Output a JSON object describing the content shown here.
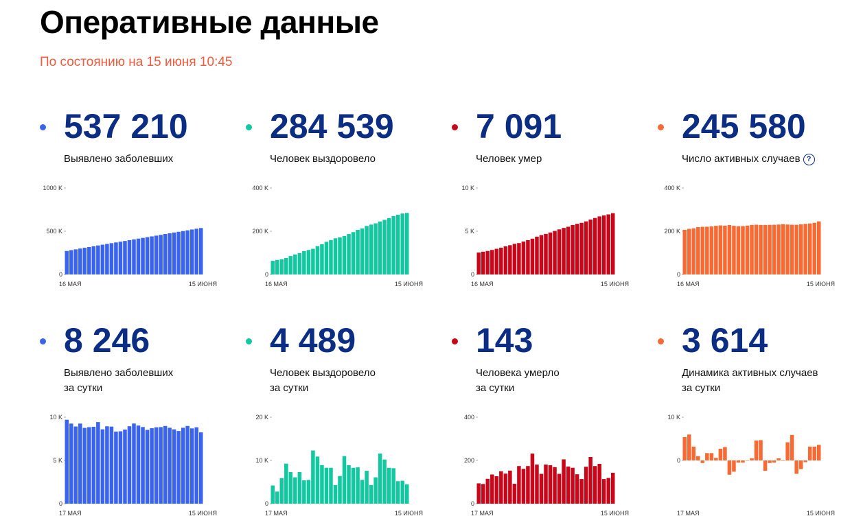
{
  "page": {
    "title": "Оперативные данные",
    "subtitle": "По состоянию на 15 июня 10:45"
  },
  "help_icon": "question-circle-icon",
  "panels": [
    {
      "id": "cases-total",
      "color": "#3a63ee",
      "value": "537 210",
      "label_line1": "Выявлено заболевших",
      "label_line2": "",
      "has_help": false,
      "chart_data": {
        "type": "bar",
        "ylim": [
          0,
          1000000
        ],
        "baseline": 0,
        "y_ticks": [
          {
            "v": 1000000,
            "label": "1000 K"
          },
          {
            "v": 500000,
            "label": "500 K"
          },
          {
            "v": 0,
            "label": "0"
          }
        ],
        "x_start_label": "16 МАЯ",
        "x_end_label": "15 ИЮНЯ",
        "values": [
          272043,
          281752,
          290678,
          299941,
          308705,
          317554,
          326448,
          335882,
          344481,
          353427,
          362342,
          370680,
          379051,
          387623,
          396575,
          405843,
          414878,
          423186,
          431715,
          440538,
          449256,
          458102,
          467673,
          476658,
          485253,
          493657,
          502436,
          510761,
          520129,
          528964,
          537210
        ]
      }
    },
    {
      "id": "recovered-total",
      "color": "#12c8a0",
      "value": "284 539",
      "label_line1": "Человек выздоровело",
      "label_line2": "",
      "has_help": false,
      "chart_data": {
        "type": "bar",
        "ylim": [
          0,
          400000
        ],
        "baseline": 0,
        "y_ticks": [
          {
            "v": 400000,
            "label": "400 K"
          },
          {
            "v": 200000,
            "label": "200 K"
          },
          {
            "v": 0,
            "label": "0"
          }
        ],
        "x_start_label": "16 МАЯ",
        "x_end_label": "15 ИЮНЯ",
        "values": [
          63166,
          67373,
          70209,
          76130,
          85392,
          92681,
          98825,
          107936,
          113299,
          118798,
          131129,
          139979,
          150993,
          159257,
          167469,
          171883,
          178073,
          186985,
          195957,
          206340,
          213154,
          224551,
          230688,
          236470,
          245217,
          252784,
          260518,
          270165,
          276349,
          282000,
          284539
        ]
      }
    },
    {
      "id": "deaths-total",
      "color": "#c8081a",
      "value": "7 091",
      "label_line1": "Человек умер",
      "label_line2": "",
      "has_help": false,
      "chart_data": {
        "type": "bar",
        "ylim": [
          0,
          10000
        ],
        "baseline": 0,
        "y_ticks": [
          {
            "v": 10000,
            "label": "10 K"
          },
          {
            "v": 5000,
            "label": "5 K"
          },
          {
            "v": 0,
            "label": "0"
          }
        ],
        "x_start_label": "16 МАЯ",
        "x_end_label": "15 ИЮНЯ",
        "values": [
          2537,
          2631,
          2722,
          2837,
          2972,
          3099,
          3249,
          3388,
          3541,
          3633,
          3807,
          3968,
          4142,
          4374,
          4555,
          4693,
          4855,
          5037,
          5215,
          5384,
          5520,
          5725,
          5859,
          5971,
          6142,
          6358,
          6532,
          6715,
          6829,
          6948,
          7091
        ]
      }
    },
    {
      "id": "active-total",
      "color": "#f86a34",
      "value": "245 580",
      "label_line1": "Число активных случаев",
      "label_line2": "",
      "has_help": true,
      "chart_data": {
        "type": "bar",
        "ylim": [
          0,
          400000
        ],
        "baseline": 0,
        "y_ticks": [
          {
            "v": 400000,
            "label": "400 K"
          },
          {
            "v": 200000,
            "label": "200 K"
          },
          {
            "v": 0,
            "label": "0"
          }
        ],
        "x_start_label": "16 МАЯ",
        "x_end_label": "15 ИЮНЯ",
        "values": [
          206340,
          211130,
          213400,
          219000,
          220500,
          221000,
          222500,
          225000,
          227000,
          226000,
          228800,
          225000,
          223500,
          224000,
          226000,
          229300,
          230200,
          229000,
          229000,
          229500,
          230100,
          231000,
          233000,
          231000,
          230200,
          230000,
          232000,
          234200,
          236000,
          239000,
          245580
        ]
      }
    },
    {
      "id": "cases-daily",
      "color": "#3a63ee",
      "value": "8 246",
      "label_line1": "Выявлено заболевших",
      "label_line2": "за сутки",
      "has_help": false,
      "chart_data": {
        "type": "bar",
        "ylim": [
          0,
          10000
        ],
        "baseline": 0,
        "y_ticks": [
          {
            "v": 10000,
            "label": "10 K"
          },
          {
            "v": 5000,
            "label": "5 K"
          },
          {
            "v": 0,
            "label": "0"
          }
        ],
        "x_start_label": "17 МАЯ",
        "x_end_label": "15 ИЮНЯ",
        "values": [
          9709,
          9263,
          8926,
          9263,
          8764,
          8849,
          8894,
          9434,
          8599,
          8946,
          8915,
          8338,
          8371,
          8572,
          8952,
          9268,
          9035,
          8863,
          8536,
          8726,
          8831,
          8855,
          8985,
          8779,
          8595,
          8404,
          8779,
          8987,
          8706,
          8835,
          8246
        ]
      }
    },
    {
      "id": "recovered-daily",
      "color": "#12c8a0",
      "value": "4 489",
      "label_line1": "Человек выздоровело",
      "label_line2": "за сутки",
      "has_help": false,
      "chart_data": {
        "type": "bar",
        "ylim": [
          0,
          20000
        ],
        "baseline": 0,
        "y_ticks": [
          {
            "v": 20000,
            "label": "20 K"
          },
          {
            "v": 10000,
            "label": "10 K"
          },
          {
            "v": 0,
            "label": "0"
          }
        ],
        "x_start_label": "17 МАЯ",
        "x_end_label": "15 ИЮНЯ",
        "values": [
          4200,
          2800,
          5900,
          9260,
          7300,
          6100,
          7300,
          5400,
          5500,
          12300,
          10900,
          8900,
          8300,
          8300,
          4300,
          6400,
          11000,
          8900,
          8300,
          8400,
          5500,
          7600,
          4300,
          6100,
          11600,
          10200,
          8300,
          8200,
          5200,
          5300,
          4489
        ]
      }
    },
    {
      "id": "deaths-daily",
      "color": "#c8081a",
      "value": "143",
      "label_line1": "Человека умерло",
      "label_line2": "за сутки",
      "has_help": false,
      "chart_data": {
        "type": "bar",
        "ylim": [
          0,
          400
        ],
        "baseline": 0,
        "y_ticks": [
          {
            "v": 400,
            "label": "400"
          },
          {
            "v": 200,
            "label": "200"
          },
          {
            "v": 0,
            "label": "0"
          }
        ],
        "x_start_label": "17 МАЯ",
        "x_end_label": "15 ИЮНЯ",
        "values": [
          94,
          91,
          115,
          135,
          127,
          150,
          139,
          153,
          92,
          174,
          161,
          174,
          232,
          181,
          138,
          181,
          178,
          169,
          138,
          205,
          172,
          166,
          136,
          114,
          171,
          216,
          174,
          184,
          114,
          119,
          143
        ]
      }
    },
    {
      "id": "active-daily",
      "color": "#f86a34",
      "value": "3 614",
      "label_line1": "Динамика активных случаев",
      "label_line2": "за сутки",
      "has_help": false,
      "chart_data": {
        "type": "bar",
        "ylim": [
          -10000,
          10000
        ],
        "baseline": 0,
        "y_ticks": [
          {
            "v": 10000,
            "label": "10 K"
          },
          {
            "v": 0,
            "label": "0"
          }
        ],
        "x_start_label": "17 МАЯ",
        "x_end_label": "15 ИЮНЯ",
        "values": [
          5400,
          6000,
          3200,
          1000,
          -600,
          1700,
          1700,
          600,
          2700,
          3100,
          -3300,
          -2600,
          -500,
          -500,
          0,
          500,
          4600,
          4700,
          -2400,
          -600,
          -500,
          500,
          -100,
          4200,
          5900,
          -3100,
          -2000,
          -400,
          3200,
          3200,
          3614
        ]
      }
    }
  ]
}
